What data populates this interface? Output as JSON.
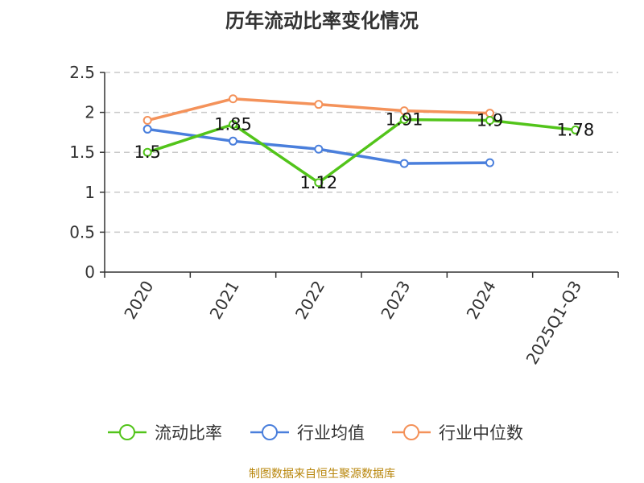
{
  "title": "历年流动比率变化情况",
  "source": "制图数据来自恒生聚源数据库",
  "chart_data": {
    "type": "line",
    "title": "历年流动比率变化情况",
    "categories": [
      "2020",
      "2021",
      "2022",
      "2023",
      "2024",
      "2025Q1-Q3"
    ],
    "ylim": [
      0,
      2.5
    ],
    "yticks": [
      "0",
      "0.5",
      "1",
      "1.5",
      "2",
      "2.5"
    ],
    "grid": true,
    "legend_position": "bottom",
    "series": [
      {
        "name": "流动比率",
        "color": "#52c41a",
        "values": [
          1.5,
          1.85,
          1.12,
          1.91,
          1.9,
          1.78
        ],
        "labels": [
          "1.5",
          "1.85",
          "1.12",
          "1.91",
          "1.9",
          "1.78"
        ]
      },
      {
        "name": "行业均值",
        "color": "#4a7fdc",
        "values": [
          1.79,
          1.64,
          1.54,
          1.36,
          1.37,
          null
        ]
      },
      {
        "name": "行业中位数",
        "color": "#f4925a",
        "values": [
          1.9,
          2.17,
          2.1,
          2.02,
          1.99,
          null
        ]
      }
    ]
  }
}
